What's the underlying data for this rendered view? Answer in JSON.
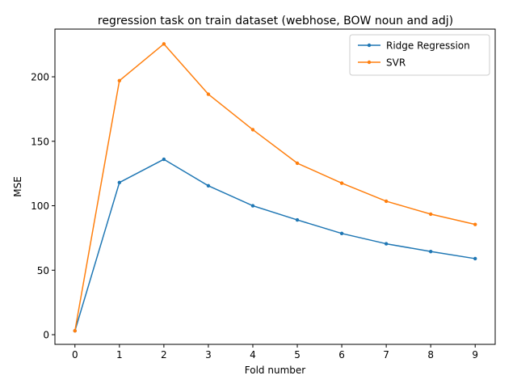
{
  "chart_data": {
    "type": "line",
    "title": "regression task on train dataset (webhose, BOW noun and adj)",
    "xlabel": "Fold number",
    "ylabel": "MSE",
    "x": [
      0,
      1,
      2,
      3,
      4,
      5,
      6,
      7,
      8,
      9
    ],
    "xticks": [
      "0",
      "1",
      "2",
      "3",
      "4",
      "5",
      "6",
      "7",
      "8",
      "9"
    ],
    "yticks": [
      0,
      50,
      100,
      150,
      200
    ],
    "xlim": [
      -0.45,
      9.45
    ],
    "ylim": [
      -7.5,
      237
    ],
    "grid": false,
    "legend_position": "top-right",
    "series": [
      {
        "name": "Ridge Regression",
        "color": "#1f77b4",
        "values": [
          3,
          118,
          136,
          115.5,
          100,
          89,
          78.5,
          70.5,
          64.5,
          59
        ]
      },
      {
        "name": "SVR",
        "color": "#ff7f0e",
        "values": [
          3,
          197,
          225.5,
          186.5,
          159,
          133,
          117.5,
          103.5,
          93.5,
          85.5
        ]
      }
    ]
  }
}
